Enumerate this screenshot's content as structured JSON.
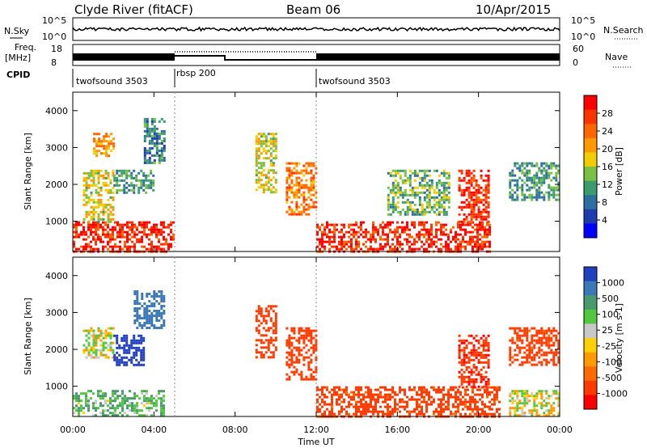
{
  "header": {
    "station": "Clyde River (fitACF)",
    "beam": "Beam 06",
    "date": "10/Apr/2015"
  },
  "panels": {
    "nsky_label": "N.Sky",
    "nsearch_label": "N.Search",
    "nsky_ticks": [
      "10^5",
      "10^0"
    ],
    "nsearch_ticks": [
      "10^5",
      "10^0"
    ],
    "freq_label_1": "Freq.",
    "freq_label_2": "[MHz]",
    "freq_ticks": [
      "18",
      "8"
    ],
    "nave_label": "Nave",
    "nave_ticks": [
      "60",
      "0"
    ],
    "cpid_label": "CPID",
    "cpid_segments": [
      {
        "name": "twofsound 3503",
        "start_hour": 0,
        "end_hour": 5
      },
      {
        "name": "rbsp 200",
        "start_hour": 5,
        "end_hour": 12
      },
      {
        "name": "twofsound 3503",
        "start_hour": 12,
        "end_hour": 24
      }
    ]
  },
  "chart_data": [
    {
      "type": "heatmap",
      "title": "Power",
      "ylabel": "Slant Range [km]",
      "xlabel": "Time UT",
      "xlim": [
        0,
        24
      ],
      "ylim": [
        180,
        4500
      ],
      "x_ticks": [
        "00:00",
        "04:00",
        "08:00",
        "12:00",
        "16:00",
        "20:00",
        "00:00"
      ],
      "y_ticks": [
        "1000",
        "2000",
        "3000",
        "4000"
      ],
      "colorbar_label": "Power [dB]",
      "colorbar_ticks": [
        "28",
        "24",
        "20",
        "16",
        "12",
        "8",
        "4"
      ],
      "colorbar_colors": [
        "#ff0000",
        "#ff3300",
        "#ff6600",
        "#ff9900",
        "#f0cc00",
        "#7ac143",
        "#3c9c6c",
        "#2f6f9f",
        "#1c3caf",
        "#0000ff"
      ],
      "regions": [
        {
          "t": [
            0.0,
            5.0
          ],
          "r": [
            180,
            1000
          ],
          "value": 28
        },
        {
          "t": [
            0.5,
            2.0
          ],
          "r": [
            1000,
            2400
          ],
          "value": 16
        },
        {
          "t": [
            1.0,
            2.0
          ],
          "r": [
            2800,
            3400
          ],
          "value": 20
        },
        {
          "t": [
            2.0,
            4.0
          ],
          "r": [
            1800,
            2400
          ],
          "value": 10
        },
        {
          "t": [
            3.5,
            4.5
          ],
          "r": [
            2600,
            3800
          ],
          "value": 8
        },
        {
          "t": [
            9.0,
            10.0
          ],
          "r": [
            1800,
            3400
          ],
          "value": 16
        },
        {
          "t": [
            10.5,
            12.0
          ],
          "r": [
            1200,
            2600
          ],
          "value": 22
        },
        {
          "t": [
            12.0,
            20.5
          ],
          "r": [
            180,
            1000
          ],
          "value": 28
        },
        {
          "t": [
            15.5,
            18.5
          ],
          "r": [
            1200,
            2400
          ],
          "value": 12
        },
        {
          "t": [
            19.0,
            20.5
          ],
          "r": [
            1000,
            2400
          ],
          "value": 28
        },
        {
          "t": [
            21.5,
            24.0
          ],
          "r": [
            1600,
            2600
          ],
          "value": 10
        }
      ]
    },
    {
      "type": "heatmap",
      "title": "Velocity",
      "ylabel": "Slant Range [km]",
      "xlabel": "Time UT",
      "xlim": [
        0,
        24
      ],
      "ylim": [
        180,
        4500
      ],
      "x_ticks": [
        "00:00",
        "04:00",
        "08:00",
        "12:00",
        "16:00",
        "20:00",
        "00:00"
      ],
      "y_ticks": [
        "1000",
        "2000",
        "3000",
        "4000"
      ],
      "colorbar_label": "Velocity [m s-1]",
      "colorbar_ticks": [
        "1000",
        "500",
        "100",
        "25",
        "-25",
        "-100",
        "-500",
        "-1000"
      ],
      "colorbar_colors": [
        "#2040c0",
        "#3a78b8",
        "#4b9a6e",
        "#52c840",
        "#c8c8c8",
        "#ffd000",
        "#ff9a00",
        "#ff6a00",
        "#ff3a00",
        "#ff0000"
      ],
      "regions": [
        {
          "t": [
            0.0,
            4.5
          ],
          "r": [
            180,
            900
          ],
          "value": 20
        },
        {
          "t": [
            0.5,
            2.0
          ],
          "r": [
            1800,
            2600
          ],
          "value": 0
        },
        {
          "t": [
            2.0,
            3.5
          ],
          "r": [
            1600,
            2400
          ],
          "value": 800
        },
        {
          "t": [
            3.0,
            4.5
          ],
          "r": [
            2600,
            3600
          ],
          "value": 300
        },
        {
          "t": [
            9.0,
            10.0
          ],
          "r": [
            1800,
            3200
          ],
          "value": -200
        },
        {
          "t": [
            10.5,
            12.0
          ],
          "r": [
            1200,
            2600
          ],
          "value": -300
        },
        {
          "t": [
            12.0,
            21.0
          ],
          "r": [
            180,
            1000
          ],
          "value": -150
        },
        {
          "t": [
            19.0,
            20.5
          ],
          "r": [
            1000,
            2400
          ],
          "value": -400
        },
        {
          "t": [
            21.5,
            24.0
          ],
          "r": [
            1600,
            2600
          ],
          "value": -150
        },
        {
          "t": [
            21.5,
            24.0
          ],
          "r": [
            180,
            900
          ],
          "value": 0
        }
      ]
    }
  ]
}
